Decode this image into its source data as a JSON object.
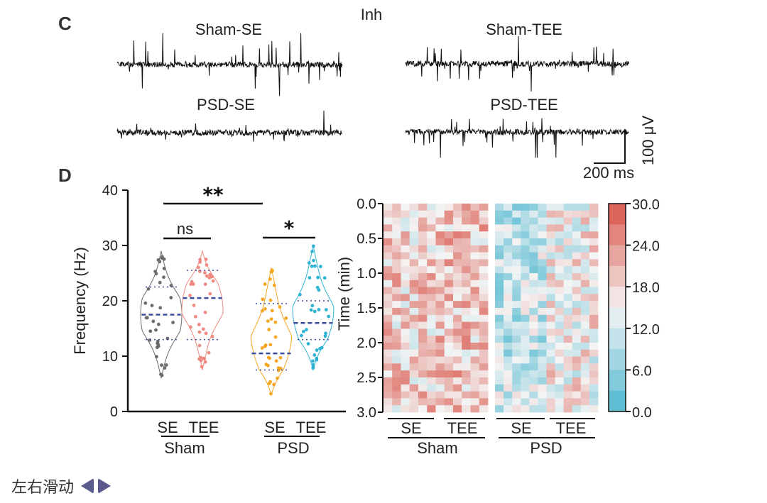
{
  "panel_c": {
    "label": "C",
    "condition": "Inh",
    "traces": [
      {
        "name": "Sham-SE",
        "amp": 1.0,
        "seed": 11
      },
      {
        "name": "Sham-TEE",
        "amp": 0.85,
        "seed": 23
      },
      {
        "name": "PSD-SE",
        "amp": 0.55,
        "seed": 37
      },
      {
        "name": "PSD-TEE",
        "amp": 0.8,
        "seed": 51
      }
    ],
    "scale_bar": {
      "vertical": "100 μV",
      "horizontal": "200 ms"
    }
  },
  "chart_data": [
    {
      "type": "violin",
      "panel": "D",
      "ylabel": "Frequency (Hz)",
      "ylim": [
        0,
        40
      ],
      "yticks": [
        0,
        10,
        20,
        30,
        40
      ],
      "categories": [
        "SE",
        "TEE",
        "SE",
        "TEE"
      ],
      "groups": [
        "Sham",
        "PSD"
      ],
      "series": [
        {
          "name": "Sham-SE",
          "color": "#6b6b6b",
          "min": 6,
          "max": 29,
          "median": 17.5,
          "q1": 13,
          "q3": 22.5
        },
        {
          "name": "Sham-TEE",
          "color": "#f08a80",
          "min": 7.5,
          "max": 29,
          "median": 20.5,
          "q1": 13,
          "q3": 25.5
        },
        {
          "name": "PSD-SE",
          "color": "#f5a623",
          "min": 3,
          "max": 26,
          "median": 10.5,
          "q1": 7.5,
          "q3": 19.5
        },
        {
          "name": "PSD-TEE",
          "color": "#2eb3d3",
          "min": 7.5,
          "max": 30,
          "median": 16,
          "q1": 13,
          "q3": 20
        }
      ],
      "significance": [
        {
          "label": "**",
          "from": 0,
          "to": 2
        },
        {
          "label": "ns",
          "from": 0,
          "to": 1
        },
        {
          "label": "*",
          "from": 2,
          "to": 3
        }
      ]
    },
    {
      "type": "heatmap",
      "ylabel": "Time (min)",
      "yticks": [
        "0.0",
        "0.5",
        "1.0",
        "1.5",
        "2.0",
        "2.5",
        "3.0"
      ],
      "colorbar_ticks": [
        "30.0",
        "24.0",
        "18.0",
        "12.0",
        "6.0",
        "0.0"
      ],
      "colorbar_range": [
        0,
        30
      ],
      "colors": {
        "low": "#4fb8d0",
        "mid": "#f4f4f4",
        "high": "#d9564b"
      },
      "columns": {
        "Sham-SE": 6,
        "Sham-TEE": 6,
        "PSD-SE": 6,
        "PSD-TEE": 6
      },
      "group_means": [
        18.5,
        19.5,
        10.5,
        15.5
      ],
      "categories": [
        "SE",
        "TEE",
        "SE",
        "TEE"
      ],
      "groups": [
        "Sham",
        "PSD"
      ]
    }
  ],
  "nav": {
    "label": "左右滑动",
    "prev_icon": "caret-left-icon",
    "next_icon": "caret-right-icon"
  }
}
